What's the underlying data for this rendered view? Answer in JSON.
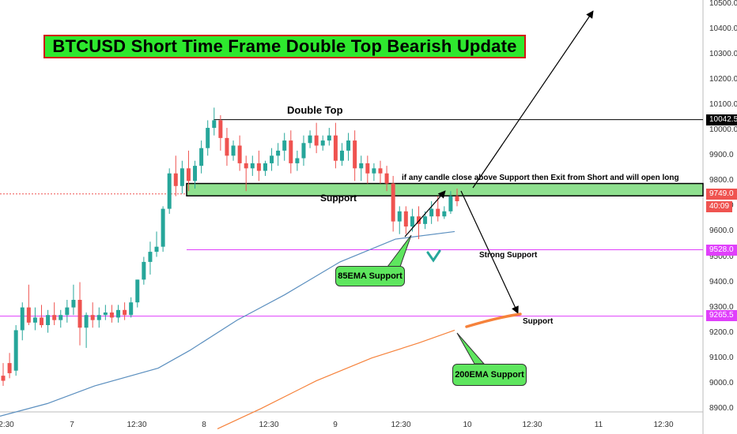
{
  "title": "BTCUSD Short Time Frame Double Top Bearish Update",
  "annotations": {
    "double_top": "Double Top",
    "support_label": "Support",
    "exit_note": "if any candle close  above Support then Exit from Short and will open long",
    "strong_support": "Strong Support",
    "support_lower": "Support",
    "ema85": "85EMA Support",
    "ema200": "200EMA Support"
  },
  "price_labels": {
    "double_top_level": "10042.5",
    "support_level": "9749.0",
    "countdown": "40:09",
    "strong_support_level": "9528.0",
    "lower_support_level": "9265.5"
  },
  "colors": {
    "up": "#26a69a",
    "down": "#ef5350",
    "ema85": "#5b8fbf",
    "ema200": "#f6823b",
    "magenta": "#e040fb",
    "support_zone": "#8fe08f",
    "callout_green": "#5ee65e",
    "title_bg": "#2ee82e",
    "title_border": "#d21414"
  },
  "chart_data": {
    "type": "candlestick",
    "symbol": "BTCUSD",
    "ylim": [
      8850,
      10550
    ],
    "y_ticks": [
      "10500.0",
      "10400.0",
      "10300.0",
      "10200.0",
      "10100.0",
      "10000.0",
      "9900.0",
      "9800.0",
      "9700.0",
      "9600.0",
      "9500.0",
      "9400.0",
      "9300.0",
      "9200.0",
      "9100.0",
      "9000.0",
      "8900.0"
    ],
    "x_ticks": [
      "2:30",
      "7",
      "12:30",
      "8",
      "12:30",
      "9",
      "12:30",
      "10",
      "12:30",
      "11",
      "12:30"
    ],
    "levels": [
      {
        "name": "Double Top",
        "price": 10042.5
      },
      {
        "name": "Support",
        "price": 9749.0
      },
      {
        "name": "Strong Support",
        "price": 9528.0
      },
      {
        "name": "Support",
        "price": 9265.5
      }
    ],
    "candles": [
      [
        9030,
        9080,
        9010,
        8990
      ],
      [
        9080,
        9120,
        9040,
        9020
      ],
      [
        9050,
        9230,
        9210,
        9030
      ],
      [
        9210,
        9320,
        9300,
        9170
      ],
      [
        9300,
        9390,
        9240,
        9230
      ],
      [
        9240,
        9300,
        9260,
        9210
      ],
      [
        9260,
        9310,
        9230,
        9220
      ],
      [
        9230,
        9290,
        9270,
        9200
      ],
      [
        9270,
        9320,
        9250,
        9230
      ],
      [
        9250,
        9290,
        9270,
        9220
      ],
      [
        9270,
        9330,
        9300,
        9240
      ],
      [
        9300,
        9390,
        9330,
        9270
      ],
      [
        9330,
        9400,
        9220,
        9150
      ],
      [
        9220,
        9280,
        9270,
        9140
      ],
      [
        9270,
        9320,
        9250,
        9220
      ],
      [
        9250,
        9300,
        9270,
        9220
      ],
      [
        9270,
        9310,
        9280,
        9250
      ],
      [
        9280,
        9310,
        9260,
        9240
      ],
      [
        9260,
        9310,
        9290,
        9240
      ],
      [
        9290,
        9320,
        9270,
        9250
      ],
      [
        9270,
        9340,
        9320,
        9260
      ],
      [
        9320,
        9360,
        9410,
        9300
      ],
      [
        9410,
        9500,
        9480,
        9390
      ],
      [
        9480,
        9560,
        9520,
        9430
      ],
      [
        9520,
        9600,
        9540,
        9500
      ],
      [
        9540,
        9700,
        9690,
        9520
      ],
      [
        9690,
        9850,
        9830,
        9670
      ],
      [
        9830,
        9900,
        9780,
        9740
      ],
      [
        9780,
        9880,
        9850,
        9750
      ],
      [
        9850,
        9920,
        9800,
        9760
      ],
      [
        9800,
        9880,
        9860,
        9770
      ],
      [
        9860,
        9960,
        9930,
        9830
      ],
      [
        9930,
        10040,
        10010,
        9900
      ],
      [
        10010,
        10090,
        10040,
        9980
      ],
      [
        10040,
        10060,
        9970,
        9920
      ],
      [
        9970,
        10010,
        9900,
        9860
      ],
      [
        9900,
        9960,
        9940,
        9880
      ],
      [
        9940,
        9980,
        9870,
        9840
      ],
      [
        9870,
        9900,
        9850,
        9760
      ],
      [
        9850,
        9900,
        9870,
        9820
      ],
      [
        9870,
        9920,
        9840,
        9800
      ],
      [
        9840,
        9880,
        9870,
        9820
      ],
      [
        9870,
        9930,
        9900,
        9840
      ],
      [
        9900,
        9950,
        9920,
        9860
      ],
      [
        9920,
        9990,
        9960,
        9880
      ],
      [
        9960,
        10000,
        9870,
        9830
      ],
      [
        9870,
        9920,
        9890,
        9840
      ],
      [
        9890,
        9980,
        9950,
        9860
      ],
      [
        9950,
        10000,
        9980,
        9930
      ],
      [
        9980,
        10030,
        9940,
        9910
      ],
      [
        9940,
        9980,
        9960,
        9920
      ],
      [
        9960,
        10010,
        9980,
        9940
      ],
      [
        9980,
        10030,
        9880,
        9850
      ],
      [
        9880,
        9950,
        9920,
        9860
      ],
      [
        9920,
        9990,
        9960,
        9880
      ],
      [
        9960,
        10000,
        9850,
        9800
      ],
      [
        9850,
        9900,
        9870,
        9800
      ],
      [
        9870,
        9900,
        9830,
        9790
      ],
      [
        9830,
        9870,
        9850,
        9800
      ],
      [
        9850,
        9880,
        9830,
        9790
      ],
      [
        9830,
        9860,
        9790,
        9760
      ],
      [
        9790,
        9820,
        9640,
        9600
      ],
      [
        9640,
        9700,
        9680,
        9590
      ],
      [
        9680,
        9700,
        9620,
        9590
      ],
      [
        9620,
        9690,
        9660,
        9600
      ],
      [
        9660,
        9700,
        9630,
        9570
      ],
      [
        9630,
        9680,
        9660,
        9610
      ],
      [
        9660,
        9720,
        9690,
        9630
      ],
      [
        9690,
        9740,
        9660,
        9640
      ],
      [
        9660,
        9700,
        9680,
        9650
      ],
      [
        9680,
        9760,
        9740,
        9670
      ],
      [
        9740,
        9770,
        9720,
        9700
      ]
    ],
    "ema85": [
      [
        0,
        8870
      ],
      [
        60,
        8920
      ],
      [
        120,
        8990
      ],
      [
        200,
        9060
      ],
      [
        240,
        9130
      ],
      [
        300,
        9250
      ],
      [
        360,
        9350
      ],
      [
        430,
        9480
      ],
      [
        500,
        9570
      ],
      [
        575,
        9600
      ]
    ],
    "ema200": [
      [
        275,
        8820
      ],
      [
        330,
        8900
      ],
      [
        400,
        9010
      ],
      [
        470,
        9100
      ],
      [
        530,
        9160
      ],
      [
        575,
        9210
      ]
    ]
  }
}
